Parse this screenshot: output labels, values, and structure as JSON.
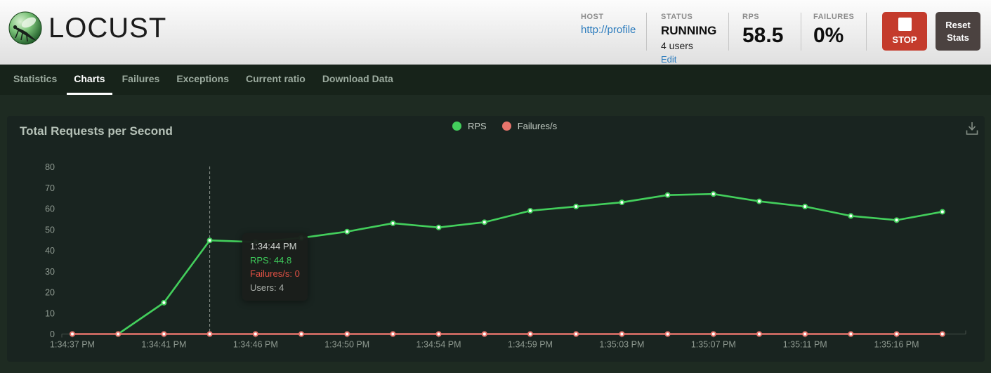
{
  "header": {
    "logo_text": "LOCUST",
    "host": {
      "label": "HOST",
      "value": "http://profile"
    },
    "status": {
      "label": "STATUS",
      "value": "RUNNING",
      "users": "4 users",
      "edit_label": "Edit"
    },
    "rps": {
      "label": "RPS",
      "value": "58.5"
    },
    "failures": {
      "label": "FAILURES",
      "value": "0%"
    },
    "stop_button": {
      "label": "STOP",
      "color": "#c43b2c"
    },
    "reset_button": {
      "label": "Reset Stats",
      "color": "#4b4240"
    }
  },
  "nav": {
    "tabs": [
      {
        "label": "Statistics",
        "active": false
      },
      {
        "label": "Charts",
        "active": true
      },
      {
        "label": "Failures",
        "active": false
      },
      {
        "label": "Exceptions",
        "active": false
      },
      {
        "label": "Current ratio",
        "active": false
      },
      {
        "label": "Download Data",
        "active": false
      }
    ]
  },
  "chart_panel": {
    "title": "Total Requests per Second",
    "legend": [
      {
        "label": "RPS",
        "color": "#43cf5c"
      },
      {
        "label": "Failures/s",
        "color": "#e8756c"
      }
    ]
  },
  "chart_data": {
    "type": "line",
    "title": "Total Requests per Second",
    "xlabel": "",
    "ylabel": "",
    "ylim": [
      0,
      80
    ],
    "y_ticks": [
      0,
      10,
      20,
      30,
      40,
      50,
      60,
      70,
      80
    ],
    "grid": false,
    "legend_position": "top-center",
    "num_points": 20,
    "x_tick_labels": [
      "1:34:37 PM",
      "1:34:41 PM",
      "1:34:46 PM",
      "1:34:50 PM",
      "1:34:54 PM",
      "1:34:59 PM",
      "1:35:03 PM",
      "1:35:07 PM",
      "1:35:11 PM",
      "1:35:16 PM"
    ],
    "x_tick_point_indices": [
      0,
      2,
      4,
      6,
      8,
      10,
      12,
      14,
      16,
      18
    ],
    "series": [
      {
        "name": "RPS",
        "color": "#43cf5c",
        "values": [
          null,
          0,
          15,
          44.8,
          44,
          46,
          49,
          53,
          51,
          53.5,
          59,
          61,
          63,
          66.5,
          67,
          63.5,
          61,
          56.5,
          54.5,
          58.5
        ]
      },
      {
        "name": "Failures/s",
        "color": "#e8756c",
        "values": [
          0,
          0,
          0,
          0,
          0,
          0,
          0,
          0,
          0,
          0,
          0,
          0,
          0,
          0,
          0,
          0,
          0,
          0,
          0,
          0
        ]
      }
    ],
    "tooltip": {
      "point_index": 3,
      "time": "1:34:44 PM",
      "rps_line": "RPS: 44.8",
      "failures_line": "Failures/s: 0",
      "users_line": "Users: 4"
    }
  }
}
